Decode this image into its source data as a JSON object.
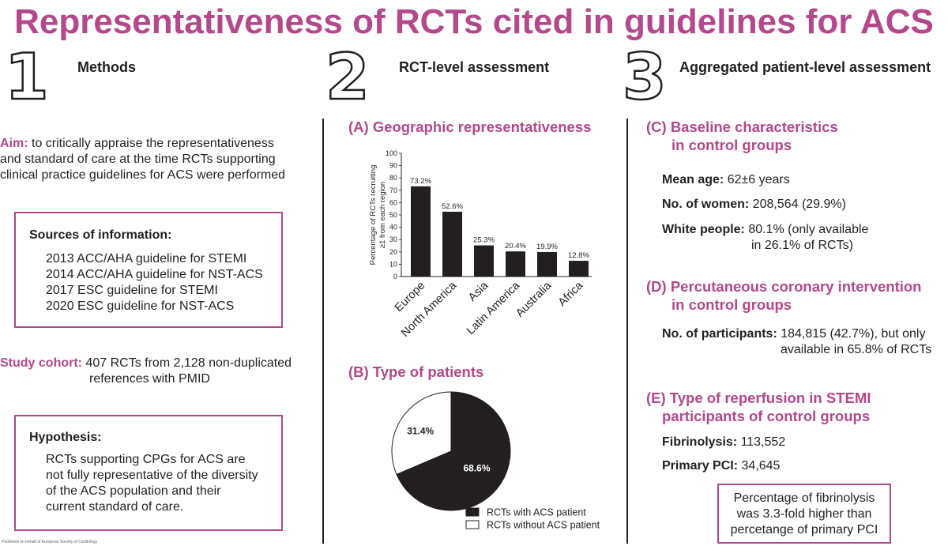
{
  "title": "Representativeness of RCTs cited in guidelines for ACS",
  "columns": [
    {
      "number": "1",
      "heading": "Methods"
    },
    {
      "number": "2",
      "heading": "RCT-level assessment"
    },
    {
      "number": "3",
      "heading": "Aggregated patient-level assessment"
    }
  ],
  "methods": {
    "aim_label": "Aim:",
    "aim_text_1": " to critically appraise the representativeness",
    "aim_text_2": "and standard of care at the time RCTs supporting",
    "aim_text_3": "clinical practice guidelines for ACS were performed",
    "sources_title": "Sources of information:",
    "sources": [
      "2013 ACC/AHA guideline for STEMI",
      "2014 ACC/AHA guideline for NST-ACS",
      "2017 ESC guideline for STEMI",
      "2020 ESC guideline for NST-ACS"
    ],
    "cohort_label": "Study cohort:",
    "cohort_text_1": "407 RCTs from 2,128 non-duplicated",
    "cohort_text_2": "references with PMID",
    "hypothesis_title": "Hypothesis:",
    "hypothesis_lines": [
      "RCTs supporting CPGs for ACS are",
      "not fully representative of the diversity",
      "of the ACS population and their",
      "current standard of care."
    ],
    "footer_note": "Published on behalf of European Society of Cardiology"
  },
  "rct_level": {
    "section_a": "(A) Geographic representativeness",
    "section_b": "(B) Type of patients"
  },
  "chart_data": [
    {
      "type": "bar",
      "title": "(A) Geographic representativeness",
      "ylabel_line1": "Percentage of RCTs recruiting",
      "ylabel_line2": "≥1 from each region",
      "categories": [
        "Europe",
        "North America",
        "Asia",
        "Latin America",
        "Australia",
        "Africa"
      ],
      "values": [
        73.2,
        52.6,
        25.3,
        20.4,
        19.9,
        12.8
      ],
      "data_labels": [
        "73.2%",
        "52.6%",
        "25.3%",
        "20.4%",
        "19.9%",
        "12.8%"
      ],
      "ylim": [
        0,
        100
      ],
      "yticks": [
        0,
        10,
        20,
        30,
        40,
        50,
        60,
        70,
        80,
        90,
        100
      ],
      "color": "#231f20",
      "grid": false
    },
    {
      "type": "pie",
      "title": "(B) Type of patients",
      "labels": [
        "RCTs with ACS patient",
        "RCTs without ACS patient"
      ],
      "values": [
        68.6,
        31.4
      ],
      "data_labels": [
        "68.6%",
        "31.4%"
      ],
      "colors": [
        "#231f20",
        "#ffffff"
      ],
      "legend": "bottom-right"
    }
  ],
  "patient_level": {
    "section_c_1": "(C) Baseline characteristics",
    "section_c_2": "in control groups",
    "age_label": "Mean age:",
    "age_value": " 62±6 years",
    "women_label": "No. of women:",
    "women_value": " 208,564 (29.9%)",
    "white_label": "White people:",
    "white_value_1": " 80.1% (only available",
    "white_value_2": "in 26.1% of RCTs)",
    "section_d_1": "(D) Percutaneous coronary intervention",
    "section_d_2": "in control groups",
    "participants_label": "No. of participants:",
    "participants_value_1": " 184,815 (42.7%), but only",
    "participants_value_2": "available in 65.8% of RCTs",
    "section_e_1": "(E) Type of reperfusion in STEMI",
    "section_e_2": "participants of control groups",
    "fibrinolysis_label": "Fibrinolysis:",
    "fibrinolysis_value": " 113,552",
    "pci_label": "Primary PCI:",
    "pci_value": " 34,645",
    "conclusion_lines": [
      "Percentage of fibrinolysis",
      "was 3.3-fold higher than",
      "percetange of primary PCI"
    ]
  }
}
